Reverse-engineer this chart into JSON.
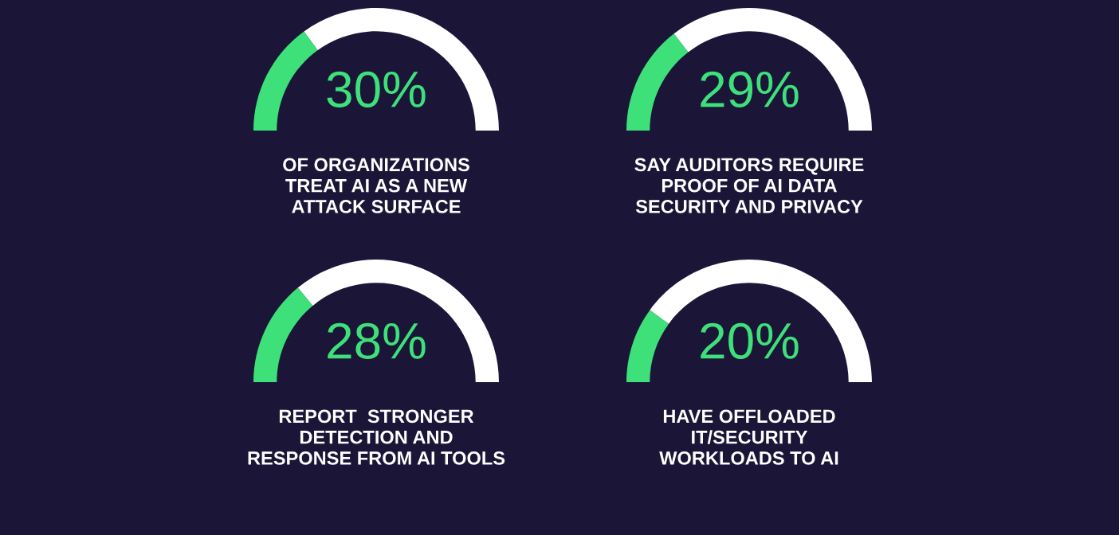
{
  "chart_data": [
    {
      "type": "donut",
      "categories": [
        null,
        null
      ],
      "values": [
        30,
        70
      ],
      "colors": [
        "#3ee07a",
        "#ffffff"
      ],
      "title": "30%",
      "annotations": [
        "OF ORGANIZATIONS\nTREAT AI AS A NEW\nATTACK SURFACE"
      ]
    },
    {
      "type": "donut",
      "categories": [
        null,
        null
      ],
      "values": [
        29,
        71
      ],
      "colors": [
        "#3ee07a",
        "#ffffff"
      ],
      "title": "29%",
      "annotations": [
        "SAY AUDITORS REQUIRE\nPROOF OF AI DATA\nSECURITY AND PRIVACY"
      ]
    },
    {
      "type": "donut",
      "categories": [
        null,
        null
      ],
      "values": [
        28,
        72
      ],
      "colors": [
        "#3ee07a",
        "#ffffff"
      ],
      "title": "28%",
      "annotations": [
        "REPORT  STRONGER\nDETECTION AND\nRESPONSE FROM AI TOOLS"
      ]
    },
    {
      "type": "donut",
      "categories": [
        null,
        null
      ],
      "values": [
        20,
        80
      ],
      "colors": [
        "#3ee07a",
        "#ffffff"
      ],
      "title": "20%",
      "annotations": [
        "HAVE OFFLOADED\nIT/SECURITY\nWORKLOADS TO AI"
      ]
    }
  ]
}
